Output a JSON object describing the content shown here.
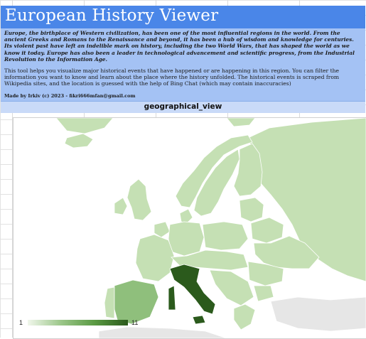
{
  "header": {
    "title": "European History Viewer",
    "intro": "Europe, the birthplace of Western civilization, has been one of the most influential regions in the world. From the ancient Greeks and Romans to the Renaissance and beyond, it has been a hub of wisdom and knowledge for centuries. Its violent past have left an indelible mark on history, including the two World Wars, that has shaped the world as we know it today. Europe has also been a leader in technological advancement and scientific progress, from the Industrial Revolution to the Information Age.",
    "description": "This tool helps you visualize major historical events that have happened or are happening in this region. You can filter the information you want to know and learn about the place where the history unfolded. The historical events is scraped from Wikipedia sites, and the location is guessed with the help of Bing Chat (which may contain inaccuracies)",
    "credit": "Made by Irkiv (c) 2023 - fikri666mfan@gmail.com"
  },
  "view": {
    "title": "geographical_view"
  },
  "map": {
    "legend_min": "1",
    "legend_max": "11",
    "colors": {
      "land_default": "#c5e0b4",
      "highlight_max": "#2b5a1c",
      "highlight_mid": "#8fbf7c",
      "sea": "#ffffff",
      "non_data": "#e6e6e6"
    }
  }
}
